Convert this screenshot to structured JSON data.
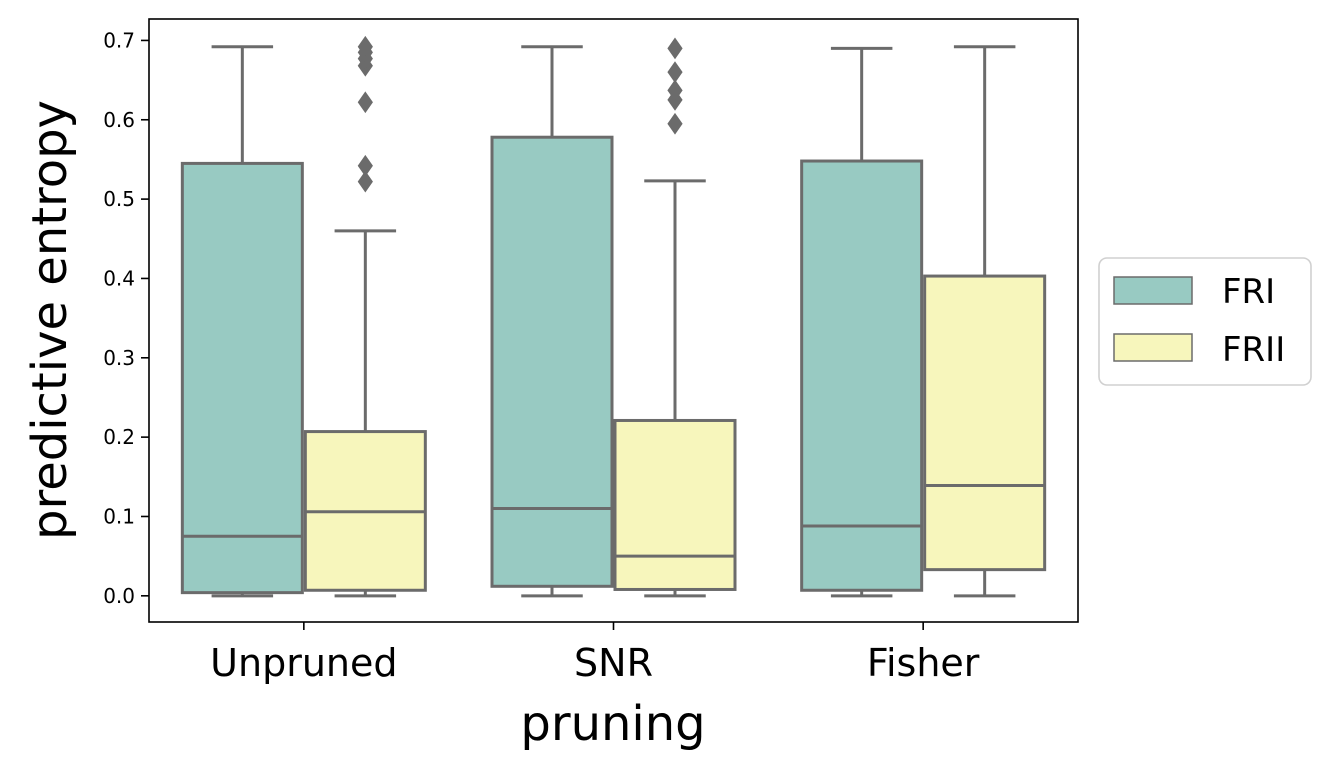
{
  "chart_data": {
    "type": "box",
    "xlabel": "pruning",
    "ylabel": "predictive entropy",
    "ylim": [
      -0.033,
      0.727
    ],
    "yticks": [
      "0.0",
      "0.1",
      "0.2",
      "0.3",
      "0.4",
      "0.5",
      "0.6",
      "0.7"
    ],
    "ytick_values": [
      0,
      0.1,
      0.2,
      0.3,
      0.4,
      0.5,
      0.6,
      0.7
    ],
    "categories": [
      "Unpruned",
      "SNR",
      "Fisher"
    ],
    "legend_position": "right",
    "series": [
      {
        "name": "FRI",
        "color": "#98cac2",
        "boxes": [
          {
            "whislo": 0.0,
            "q1": 0.004,
            "med": 0.075,
            "q3": 0.545,
            "whishi": 0.692,
            "fliers": []
          },
          {
            "whislo": 0.0,
            "q1": 0.012,
            "med": 0.11,
            "q3": 0.578,
            "whishi": 0.692,
            "fliers": []
          },
          {
            "whislo": 0.0,
            "q1": 0.007,
            "med": 0.088,
            "q3": 0.548,
            "whishi": 0.69,
            "fliers": []
          }
        ]
      },
      {
        "name": "FRII",
        "color": "#f7f6bc",
        "boxes": [
          {
            "whislo": 0.0,
            "q1": 0.007,
            "med": 0.106,
            "q3": 0.207,
            "whishi": 0.46,
            "fliers": [
              0.522,
              0.542,
              0.622,
              0.668,
              0.677,
              0.685,
              0.692
            ]
          },
          {
            "whislo": 0.0,
            "q1": 0.008,
            "med": 0.05,
            "q3": 0.221,
            "whishi": 0.523,
            "fliers": [
              0.595,
              0.625,
              0.637,
              0.66,
              0.69
            ]
          },
          {
            "whislo": 0.0,
            "q1": 0.033,
            "med": 0.139,
            "q3": 0.403,
            "whishi": 0.692,
            "fliers": []
          }
        ]
      }
    ],
    "style": {
      "line_color": "#6b6b6b"
    }
  }
}
